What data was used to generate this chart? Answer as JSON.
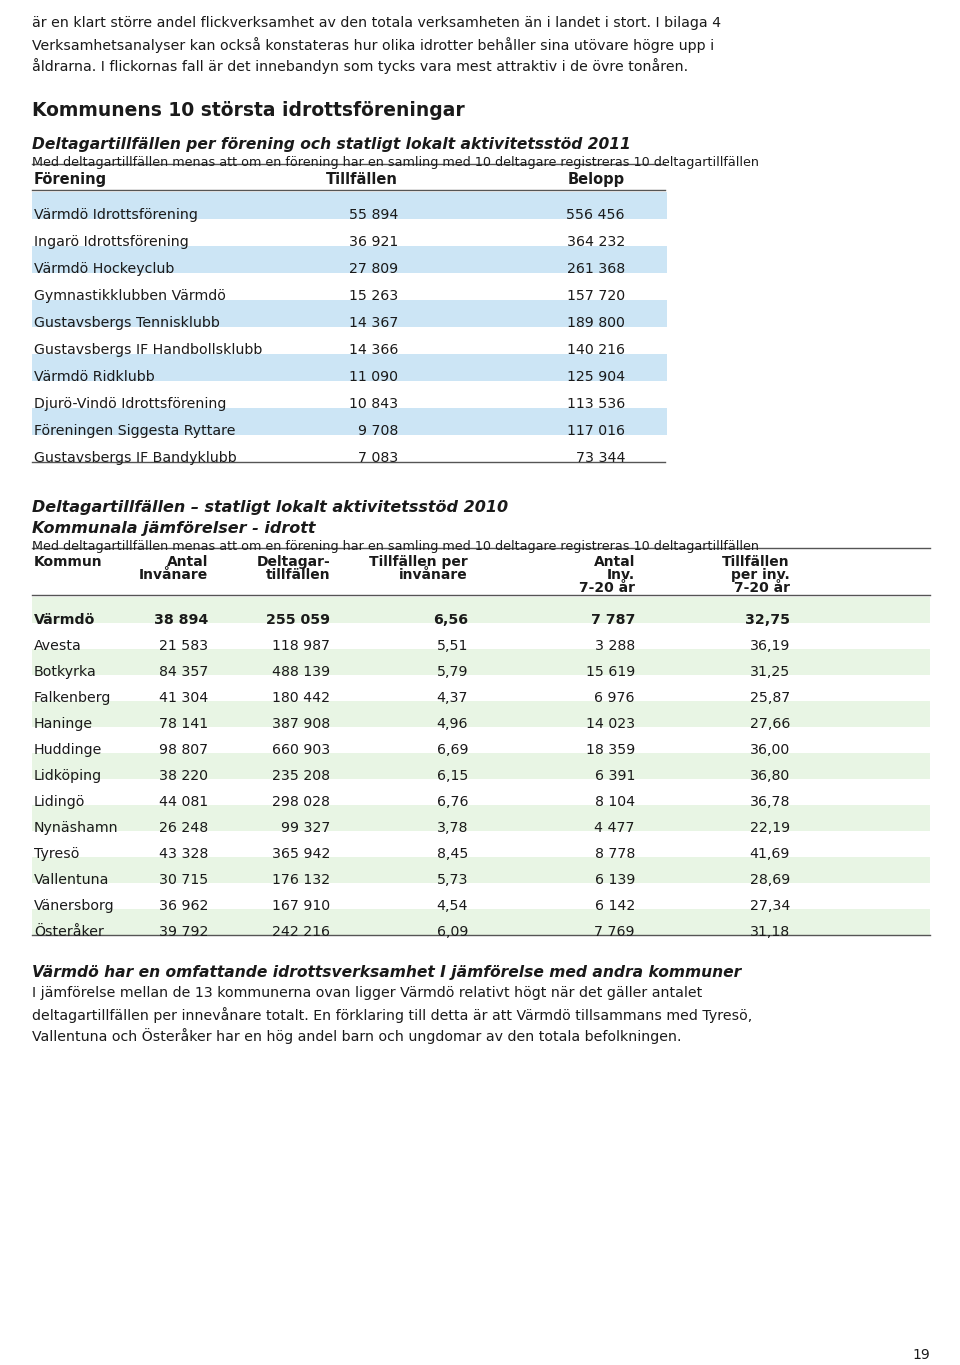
{
  "intro_text": [
    "är en klart större andel flickverksamhet av den totala verksamheten än i landet i stort. I bilaga 4",
    "Verksamhetsanalyser kan också konstateras hur olika idrotter behåller sina utövare högre upp i",
    "åldrarna. I flickkornas fall är det innebandyn som tycks vara mest attraktiv i de övre tonåren."
  ],
  "intro_text2": [
    "är en klart större andel flickverksamhet av den totala verksamheten än i landet i stort. I bilaga 4",
    "Verksamhetsanalyser kan också konstateras hur olika idrotter behåller sina utövare högre upp i",
    "åldrarna. I flickornas fall är det innebandyn som tycks vara mest attraktiv i de övre tonåren."
  ],
  "section1_title": "Kommunens 10 största idrottsföreningar",
  "section1_subtitle": "Deltagartillfällen per förening och statligt lokalt aktivitetsstöd 2011",
  "section1_note": "Med deltagartillfällen menas att om en förening har en samling med 10 deltagare registreras 10 deltagartillfällen",
  "table1_headers": [
    "Förening",
    "Tillfällen",
    "Belopp"
  ],
  "table1_data": [
    [
      "Värmdö Idrottsförening",
      "55 894",
      "556 456"
    ],
    [
      "Ingarö Idrottsförening",
      "36 921",
      "364 232"
    ],
    [
      "Värmdö Hockeyclub",
      "27 809",
      "261 368"
    ],
    [
      "Gymnastikklubben Värmdö",
      "15 263",
      "157 720"
    ],
    [
      "Gustavsbergs Tennisklubb",
      "14 367",
      "189 800"
    ],
    [
      "Gustavsbergs IF Handbollsklubb",
      "14 366",
      "140 216"
    ],
    [
      "Värmdö Ridklubb",
      "11 090",
      "125 904"
    ],
    [
      "Djurö-Vindö Idrottsförening",
      "10 843",
      "113 536"
    ],
    [
      "Föreningen Siggesta Ryttare",
      "9 708",
      "117 016"
    ],
    [
      "Gustavsbergs IF Bandyklubb",
      "7 083",
      "73 344"
    ]
  ],
  "table1_highlight_rows": [
    0,
    2,
    4,
    6,
    8
  ],
  "table1_highlight_color": "#cce5f5",
  "section2_subtitle1": "Deltagartillfällen – statligt lokalt aktivitetsstöd 2010",
  "section2_subtitle2": "Kommunala jämförelser - idrott",
  "section2_note": "Med deltagartillfällen menas att om en förening har en samling med 10 deltagare registreras 10 deltagartillfällen",
  "table2_col_headers": [
    [
      "Kommun",
      "",
      ""
    ],
    [
      "Antal",
      "Invånare",
      ""
    ],
    [
      "Deltagar-",
      "tillfällen",
      ""
    ],
    [
      "Tillfällen per",
      "invånare",
      ""
    ],
    [
      "Antal",
      "Inv.",
      "7-20 år"
    ],
    [
      "Tillfällen",
      "per inv.",
      "7-20 år"
    ]
  ],
  "table2_data": [
    [
      "Värmdö",
      "38 894",
      "255 059",
      "6,56",
      "7 787",
      "32,75",
      true
    ],
    [
      "Avesta",
      "21 583",
      "118 987",
      "5,51",
      "3 288",
      "36,19",
      false
    ],
    [
      "Botkyrka",
      "84 357",
      "488 139",
      "5,79",
      "15 619",
      "31,25",
      false
    ],
    [
      "Falkenberg",
      "41 304",
      "180 442",
      "4,37",
      "6 976",
      "25,87",
      false
    ],
    [
      "Haninge",
      "78 141",
      "387 908",
      "4,96",
      "14 023",
      "27,66",
      false
    ],
    [
      "Huddinge",
      "98 807",
      "660 903",
      "6,69",
      "18 359",
      "36,00",
      false
    ],
    [
      "Lidköping",
      "38 220",
      "235 208",
      "6,15",
      "6 391",
      "36,80",
      false
    ],
    [
      "Lidingö",
      "44 081",
      "298 028",
      "6,76",
      "8 104",
      "36,78",
      false
    ],
    [
      "Nynäshamn",
      "26 248",
      "99 327",
      "3,78",
      "4 477",
      "22,19",
      false
    ],
    [
      "Tyresö",
      "43 328",
      "365 942",
      "8,45",
      "8 778",
      "41,69",
      false
    ],
    [
      "Vallentuna",
      "30 715",
      "176 132",
      "5,73",
      "6 139",
      "28,69",
      false
    ],
    [
      "Vänersborg",
      "36 962",
      "167 910",
      "4,54",
      "6 142",
      "27,34",
      false
    ],
    [
      "Österåker",
      "39 792",
      "242 216",
      "6,09",
      "7 769",
      "31,18",
      false
    ]
  ],
  "table2_highlight_rows": [
    0,
    2,
    4,
    6,
    8,
    10,
    12
  ],
  "table2_highlight_color": "#e8f5e4",
  "section3_title": "Värmdö har en omfattande idrottsverksamhet I jämförelse med andra kommuner",
  "section3_text": [
    "I jämförelse mellan de 13 kommunerna ovan ligger Värmdö relativt högt när det gäller antalet",
    "deltagartillfällen per innevånare totalt. En förklaring till detta är att Värmdö tillsammans med Tyresö,",
    "Vallentuna och Österåker har en hög andel barn och ungdomar av den totala befolkningen."
  ],
  "page_number": "19",
  "bg_color": "#ffffff",
  "line_color": "#777777"
}
